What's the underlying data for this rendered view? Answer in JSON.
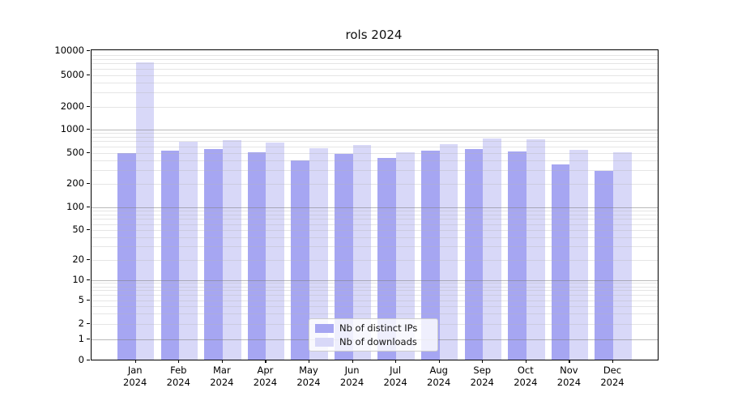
{
  "figure": {
    "title": "rols 2024"
  },
  "legend": {
    "items": [
      {
        "label": "Nb of distinct IPs",
        "color": "#a6a6f2"
      },
      {
        "label": "Nb of downloads",
        "color": "#d8d8f8"
      }
    ]
  },
  "axes": {
    "y_ticks": [
      {
        "label": "10000",
        "value": 10000
      },
      {
        "label": "5000",
        "value": 5000
      },
      {
        "label": "2000",
        "value": 2000
      },
      {
        "label": "1000",
        "value": 1000
      },
      {
        "label": "500",
        "value": 500
      },
      {
        "label": "200",
        "value": 200
      },
      {
        "label": "100",
        "value": 100
      },
      {
        "label": "50",
        "value": 50
      },
      {
        "label": "20",
        "value": 20
      },
      {
        "label": "10",
        "value": 10
      },
      {
        "label": "5",
        "value": 5
      },
      {
        "label": "2",
        "value": 2
      },
      {
        "label": "1",
        "value": 1
      },
      {
        "label": "0",
        "value": 0
      }
    ],
    "x_ticks": [
      {
        "month": "Jan",
        "year": "2024"
      },
      {
        "month": "Feb",
        "year": "2024"
      },
      {
        "month": "Mar",
        "year": "2024"
      },
      {
        "month": "Apr",
        "year": "2024"
      },
      {
        "month": "May",
        "year": "2024"
      },
      {
        "month": "Jun",
        "year": "2024"
      },
      {
        "month": "Jul",
        "year": "2024"
      },
      {
        "month": "Aug",
        "year": "2024"
      },
      {
        "month": "Sep",
        "year": "2024"
      },
      {
        "month": "Oct",
        "year": "2024"
      },
      {
        "month": "Nov",
        "year": "2024"
      },
      {
        "month": "Dec",
        "year": "2024"
      }
    ]
  },
  "chart_data": {
    "type": "bar",
    "title": "rols 2024",
    "categories": [
      "Jan 2024",
      "Feb 2024",
      "Mar 2024",
      "Apr 2024",
      "May 2024",
      "Jun 2024",
      "Jul 2024",
      "Aug 2024",
      "Sep 2024",
      "Oct 2024",
      "Nov 2024",
      "Dec 2024"
    ],
    "series": [
      {
        "name": "Nb of distinct IPs",
        "color": "#a6a6f2",
        "values": [
          490,
          525,
          555,
          495,
          390,
          475,
          425,
          520,
          555,
          515,
          345,
          290
        ]
      },
      {
        "name": "Nb of downloads",
        "color": "#d8d8f8",
        "values": [
          7100,
          690,
          715,
          660,
          570,
          615,
          505,
          630,
          750,
          725,
          540,
          505
        ]
      }
    ],
    "xlabel": "",
    "ylabel": "",
    "yscale": "symlog",
    "ylim": [
      0,
      10000
    ],
    "yticks": [
      0,
      1,
      2,
      5,
      10,
      20,
      50,
      100,
      200,
      500,
      1000,
      2000,
      5000,
      10000
    ],
    "grid": true,
    "legend_position": "lower center"
  }
}
